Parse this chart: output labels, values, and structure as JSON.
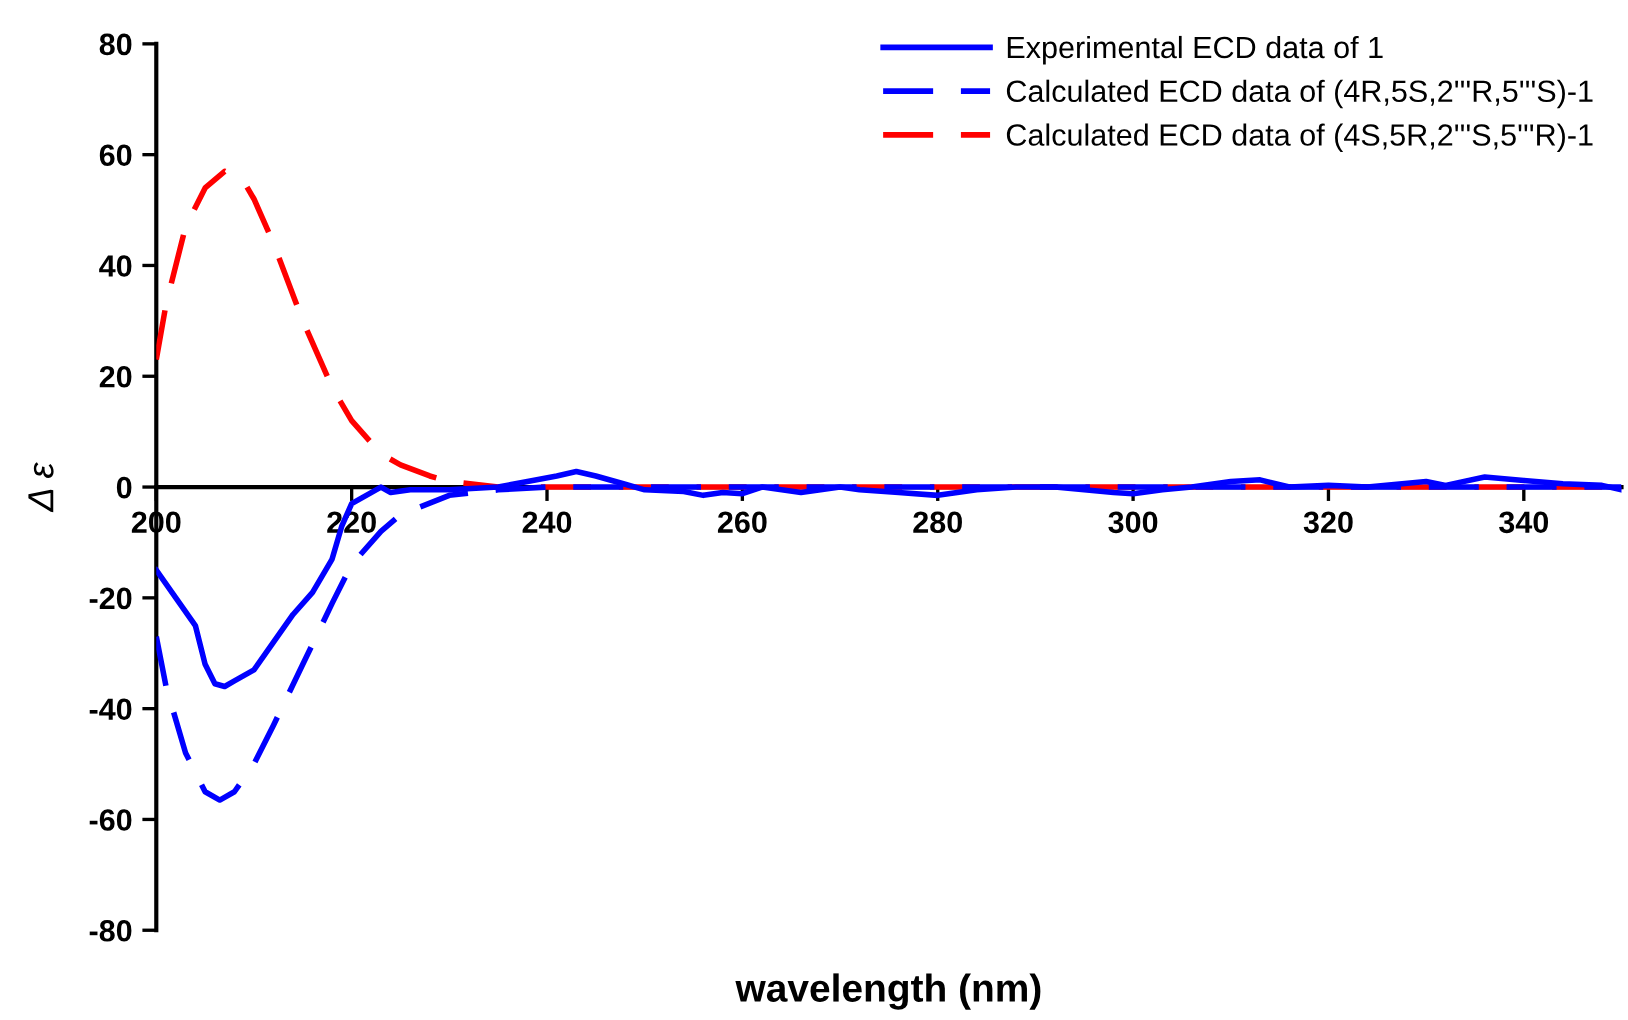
{
  "chart_data": {
    "type": "line",
    "xlabel": "wavelength (nm)",
    "ylabel": "Δ ε",
    "xlim": [
      200,
      350
    ],
    "ylim": [
      -80,
      80
    ],
    "xticks": [
      200,
      220,
      240,
      260,
      280,
      300,
      320,
      340
    ],
    "yticks": [
      -80,
      -60,
      -40,
      -20,
      0,
      20,
      40,
      60,
      80
    ],
    "grid": false,
    "legend": "top right",
    "series": [
      {
        "name": "Experimental ECD data of 1",
        "color": "#0000ff",
        "line_style": "solid",
        "x": [
          200,
          202,
          204,
          205,
          206,
          207,
          208,
          210,
          212,
          214,
          216,
          218,
          219,
          220,
          222,
          223,
          224,
          226,
          230,
          235,
          238,
          241,
          243,
          245,
          248,
          250,
          254,
          256,
          258,
          260,
          262,
          266,
          268,
          270,
          272,
          276,
          280,
          284,
          288,
          292,
          295,
          298,
          300,
          303,
          306,
          310,
          313,
          316,
          320,
          324,
          327,
          330,
          332,
          336,
          340,
          344,
          348,
          350
        ],
        "values": [
          -15,
          -20,
          -25,
          -32,
          -35.5,
          -36,
          -35,
          -33,
          -28,
          -23,
          -19,
          -13,
          -7,
          -3,
          -1,
          0,
          -1,
          -0.5,
          -0.5,
          0,
          1,
          2,
          2.8,
          2,
          0.5,
          -0.5,
          -0.8,
          -1.5,
          -1,
          -1.2,
          0,
          -1,
          -0.5,
          0,
          -0.5,
          -1,
          -1.5,
          -0.5,
          0,
          0,
          -0.5,
          -1,
          -1.2,
          -0.5,
          0,
          1,
          1.3,
          0,
          0.3,
          0,
          0.5,
          1,
          0.3,
          1.8,
          1.2,
          0.6,
          0.3,
          -0.5
        ]
      },
      {
        "name": "Calculated ECD data of (4R,5S,2'''R,5'''S)-1",
        "color": "#0000ff",
        "line_style": "dashed",
        "x": [
          200,
          201,
          203,
          205,
          206.5,
          208,
          210,
          212,
          215,
          218,
          220,
          223,
          225,
          230,
          235,
          240,
          260,
          300,
          350
        ],
        "values": [
          -27,
          -36,
          -48,
          -55,
          -56.5,
          -55,
          -50,
          -43,
          -32,
          -21,
          -14,
          -8,
          -5,
          -1.5,
          -0.5,
          0,
          0,
          0,
          0
        ]
      },
      {
        "name": "Calculated ECD data of (4S,5R,2'''S,5'''R)-1",
        "color": "#ff0000",
        "line_style": "dashed",
        "x": [
          200,
          201,
          203,
          205,
          207,
          209,
          210,
          212,
          215,
          218,
          220,
          223,
          225,
          228,
          230,
          235,
          240,
          260,
          300,
          350
        ],
        "values": [
          23,
          33,
          47,
          54,
          57,
          55,
          52,
          44,
          30,
          18,
          12,
          6,
          4,
          2,
          1,
          0,
          0,
          0,
          0,
          0
        ]
      }
    ]
  }
}
